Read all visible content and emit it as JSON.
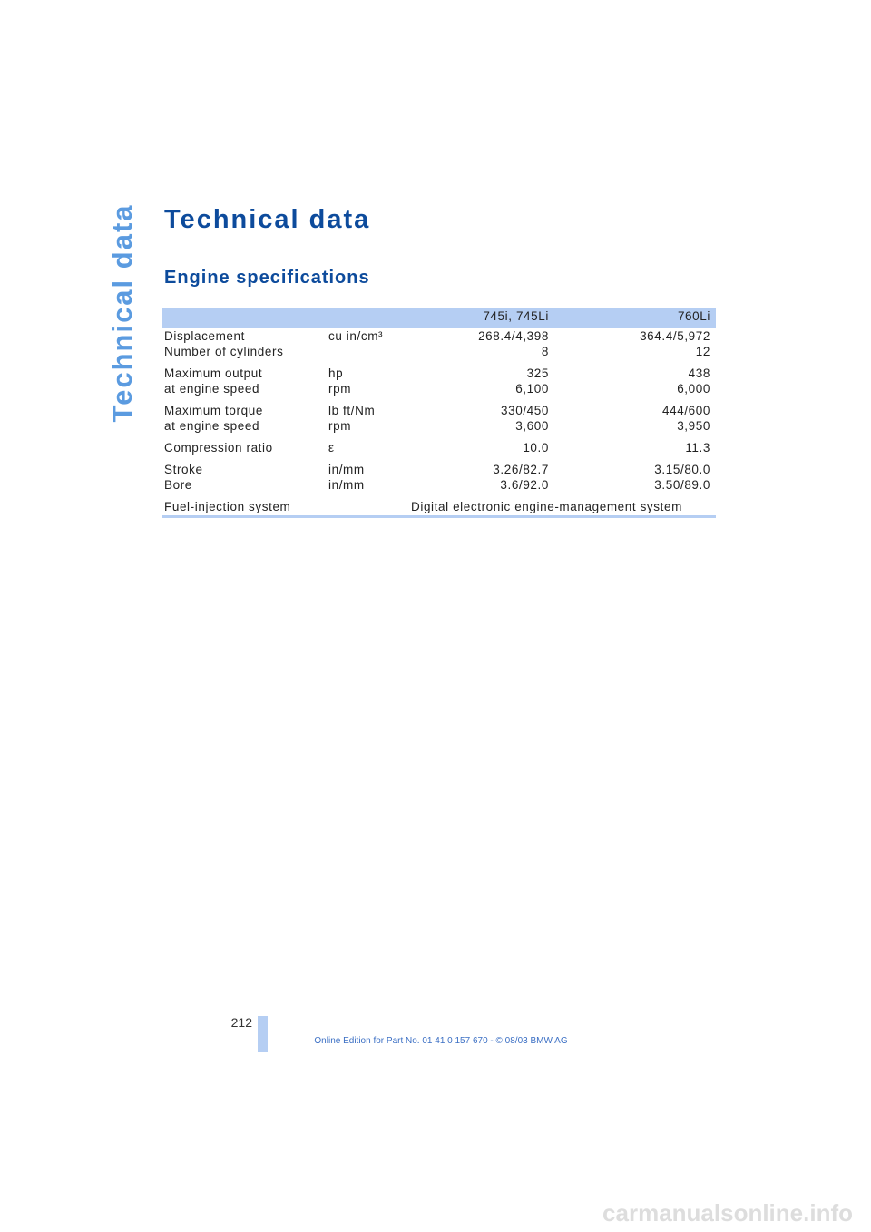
{
  "side_tab": "Technical data",
  "header": {
    "title": "Technical data",
    "section": "Engine specifications"
  },
  "table": {
    "columns": [
      "745i, 745Li",
      "760Li"
    ],
    "groups": [
      [
        {
          "label": "Displacement",
          "unit": "cu in/cm³",
          "values": [
            "268.4/4,398",
            "364.4/5,972"
          ]
        },
        {
          "label": "Number of cylinders",
          "values": [
            "8",
            "12"
          ]
        }
      ],
      [
        {
          "label": "Maximum output",
          "unit": "hp",
          "values": [
            "325",
            "438"
          ]
        },
        {
          "label": "at engine speed",
          "unit": "rpm",
          "values": [
            "6,100",
            "6,000"
          ]
        }
      ],
      [
        {
          "label": "Maximum torque",
          "unit": "lb ft/Nm",
          "values": [
            "330/450",
            "444/600"
          ]
        },
        {
          "label": "at engine speed",
          "unit": "rpm",
          "values": [
            "3,600",
            "3,950"
          ]
        }
      ],
      [
        {
          "label": "Compression ratio",
          "unit": "ε",
          "values": [
            "10.0",
            "11.3"
          ]
        }
      ],
      [
        {
          "label": "Stroke",
          "unit": "in/mm",
          "values": [
            "3.26/82.7",
            "3.15/80.0"
          ]
        },
        {
          "label": "Bore",
          "unit": "in/mm",
          "values": [
            "3.6/92.0",
            "3.50/89.0"
          ]
        }
      ]
    ],
    "fuel": {
      "label": "Fuel-injection system",
      "text": "Digital electronic engine-management system"
    }
  },
  "footer": {
    "page": "212",
    "edition": "Online Edition for Part No. 01 41 0 157 670 - © 08/03 BMW AG",
    "watermark": "carmanualsonline.info"
  }
}
